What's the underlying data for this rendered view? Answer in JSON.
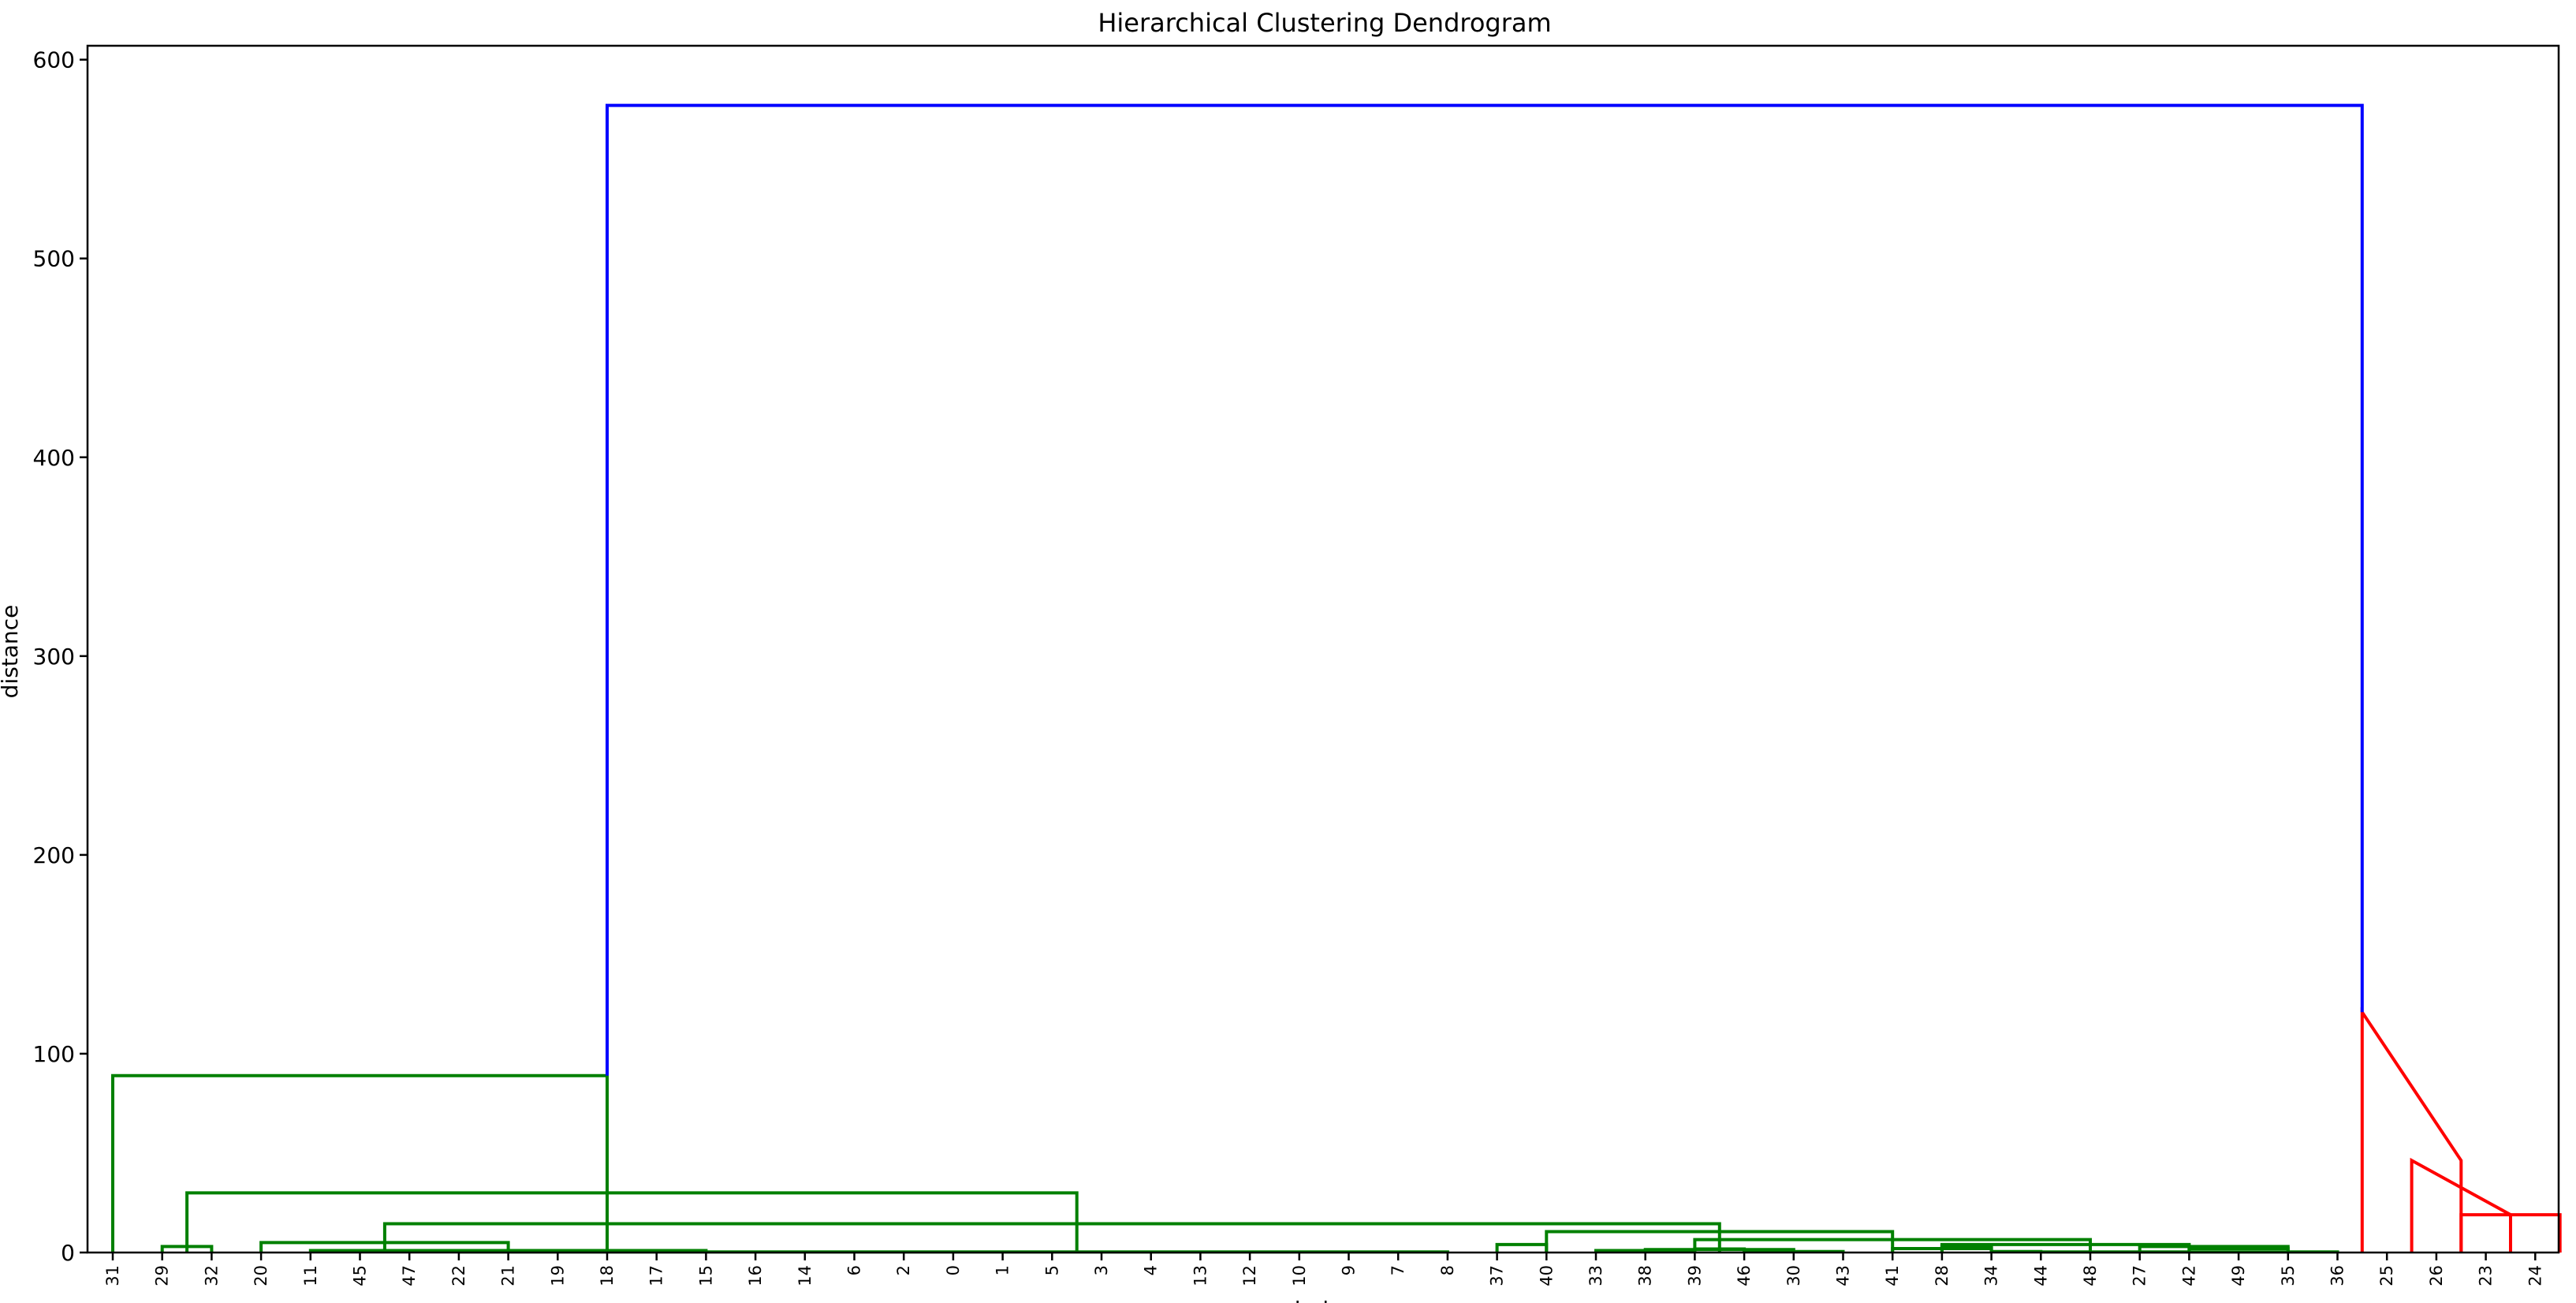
{
  "chart_data": {
    "type": "dendrogram",
    "title": "Hierarchical Clustering Dendrogram",
    "xlabel": "index",
    "ylabel": "distance",
    "ylim": [
      0,
      607
    ],
    "yticks": [
      0,
      100,
      200,
      300,
      400,
      500,
      600
    ],
    "leaves": [
      "31",
      "29",
      "32",
      "20",
      "11",
      "45",
      "47",
      "22",
      "21",
      "19",
      "18",
      "17",
      "15",
      "16",
      "14",
      "6",
      "2",
      "0",
      "1",
      "5",
      "3",
      "4",
      "13",
      "12",
      "10",
      "9",
      "7",
      "8",
      "37",
      "40",
      "33",
      "38",
      "39",
      "46",
      "30",
      "43",
      "41",
      "28",
      "34",
      "44",
      "48",
      "27",
      "42",
      "49",
      "35",
      "36",
      "25",
      "26",
      "23",
      "24"
    ],
    "colors": {
      "green": "#008000",
      "red": "#ff0000",
      "blue": "#0000ff"
    },
    "links": [
      {
        "x": [
          45.5,
          45.5,
          47.5,
          47.5
        ],
        "y": [
          0,
          120.9,
          46.3,
          0
        ],
        "color": "red"
      },
      {
        "x": [
          46.5,
          46.5,
          48.5,
          48.5
        ],
        "y": [
          0,
          46.3,
          19,
          0
        ],
        "color": "red"
      },
      {
        "x": [
          47.5,
          47.5,
          49.5,
          49.5
        ],
        "y": [
          0,
          19,
          19,
          0
        ],
        "color": "red"
      },
      {
        "x": [
          0,
          0,
          10,
          10
        ],
        "y": [
          0,
          89,
          89,
          0
        ],
        "color": "green"
      },
      {
        "x": [
          1.5,
          1.5,
          19.5,
          19.5
        ],
        "y": [
          0,
          30,
          30,
          0
        ],
        "color": "green"
      },
      {
        "x": [
          1,
          1,
          2,
          2
        ],
        "y": [
          0,
          3,
          3,
          0
        ],
        "color": "green"
      },
      {
        "x": [
          5.5,
          5.5,
          32.5,
          32.5
        ],
        "y": [
          0,
          14.5,
          14.5,
          0
        ],
        "color": "green"
      },
      {
        "x": [
          3,
          3,
          8,
          8
        ],
        "y": [
          0,
          5,
          5,
          0
        ],
        "color": "green"
      },
      {
        "x": [
          4,
          4,
          12,
          12
        ],
        "y": [
          0,
          1,
          1,
          0
        ],
        "color": "green"
      },
      {
        "x": [
          5,
          5,
          9,
          9
        ],
        "y": [
          0,
          0.8,
          0.8,
          0
        ],
        "color": "green"
      },
      {
        "x": [
          7,
          7,
          27,
          27
        ],
        "y": [
          0,
          0.3,
          0.3,
          0
        ],
        "color": "green"
      },
      {
        "x": [
          29,
          29,
          36,
          36
        ],
        "y": [
          0,
          10.5,
          10.5,
          0
        ],
        "color": "green"
      },
      {
        "x": [
          28,
          28,
          29,
          29
        ],
        "y": [
          0,
          4,
          4,
          0
        ],
        "color": "green"
      },
      {
        "x": [
          32,
          32,
          40,
          40
        ],
        "y": [
          0,
          6.5,
          6.5,
          0
        ],
        "color": "green"
      },
      {
        "x": [
          37,
          37,
          42,
          42
        ],
        "y": [
          0,
          4,
          4,
          0
        ],
        "color": "green"
      },
      {
        "x": [
          41,
          41,
          44,
          44
        ],
        "y": [
          0,
          3,
          3,
          0
        ],
        "color": "green"
      },
      {
        "x": [
          42,
          42,
          44,
          44
        ],
        "y": [
          0,
          2,
          2,
          0
        ],
        "color": "green"
      },
      {
        "x": [
          36,
          36,
          38,
          38
        ],
        "y": [
          0,
          2,
          2,
          0
        ],
        "color": "green"
      },
      {
        "x": [
          37,
          37,
          38,
          38
        ],
        "y": [
          0,
          3,
          3,
          0
        ],
        "color": "green"
      },
      {
        "x": [
          38,
          38,
          39,
          39
        ],
        "y": [
          0,
          0.5,
          0.5,
          0
        ],
        "color": "green"
      },
      {
        "x": [
          39,
          39,
          45,
          45
        ],
        "y": [
          0,
          0.3,
          0.3,
          0
        ],
        "color": "green"
      },
      {
        "x": [
          31,
          31,
          34,
          34
        ],
        "y": [
          0,
          1.5,
          1.5,
          0
        ],
        "color": "green"
      },
      {
        "x": [
          32,
          32,
          33,
          33
        ],
        "y": [
          0,
          1.8,
          1.8,
          0
        ],
        "color": "green"
      },
      {
        "x": [
          30,
          30,
          32,
          32
        ],
        "y": [
          0,
          1,
          1,
          0
        ],
        "color": "green"
      },
      {
        "x": [
          33,
          33,
          35,
          35
        ],
        "y": [
          0,
          0.5,
          0.5,
          0
        ],
        "color": "green"
      },
      {
        "x": [
          10,
          10,
          45.5,
          45.5
        ],
        "y": [
          89,
          577,
          577,
          120.9
        ],
        "color": "blue"
      }
    ]
  }
}
